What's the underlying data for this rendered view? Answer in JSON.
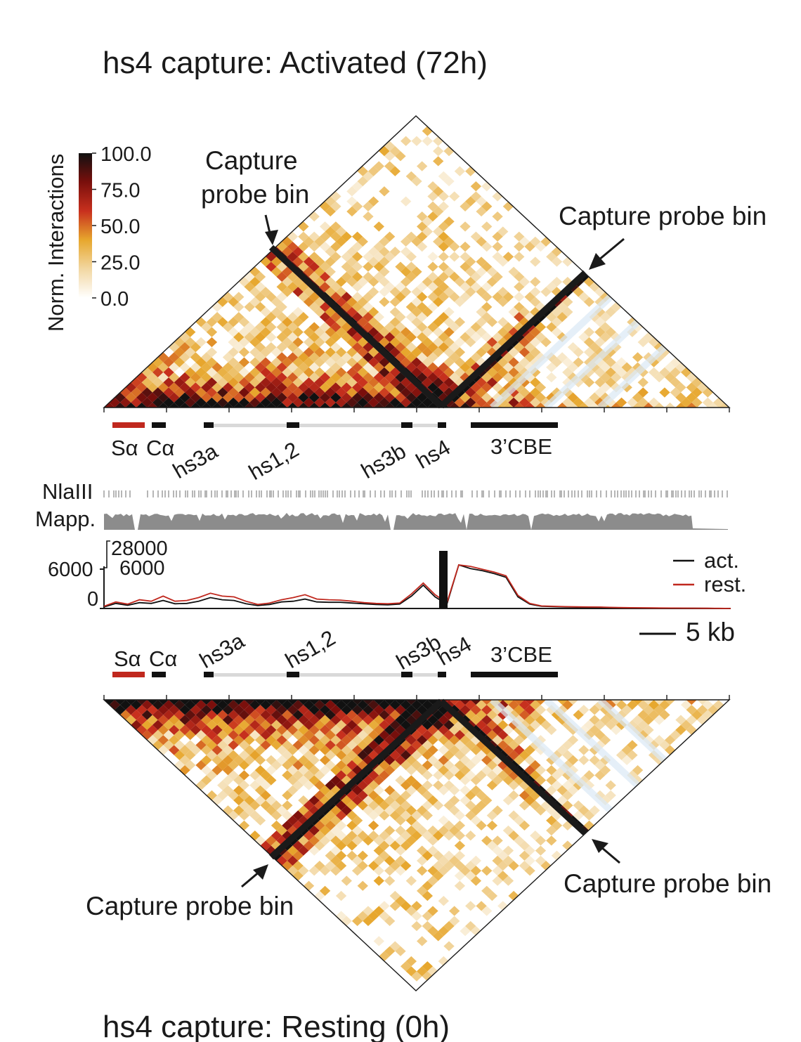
{
  "titles": {
    "top": "hs4 capture: Activated (72h)",
    "bottom": "hs4 capture: Resting (0h)"
  },
  "colorbar": {
    "label": "Norm. Interactions",
    "ticks": [
      "100.0",
      "75.0",
      "50.0",
      "25.0",
      "0.0"
    ],
    "colors": [
      "#ffffff",
      "#f2d7a2",
      "#e7a72d",
      "#c8301e",
      "#7a0f0c",
      "#111111"
    ]
  },
  "annotations": {
    "top_left_line1": "Capture",
    "top_left_line2": "probe bin",
    "top_right": "Capture probe bin",
    "bottom_left": "Capture probe bin",
    "bottom_right": "Capture probe bin"
  },
  "elements": {
    "s_alpha": "Sα",
    "c_alpha": "Cα",
    "hs3a": "hs3a",
    "hs12": "hs1,2",
    "hs3b": "hs3b",
    "hs4": "hs4",
    "cbe": "3’CBE"
  },
  "tracks": {
    "nlaiii": "NlaIII",
    "mapp": "Mapp.",
    "axis_outer_max": "6000",
    "axis_outer_min": "0",
    "axis_inner_max": "28000",
    "axis_inner_mid": "6000"
  },
  "legend": {
    "act": "act.",
    "rest": "rest.",
    "scale_bar": "5 kb"
  },
  "accent_colors": {
    "act": "#111111",
    "rest": "#c0281e",
    "s_alpha": "#c0281e",
    "track_gray": "#8c8c8c"
  },
  "chart_data": {
    "type": "heatmap",
    "colorbar_range": [
      0,
      100
    ],
    "profile": {
      "type": "line",
      "ylim": [
        0,
        6000
      ],
      "series": [
        {
          "name": "act.",
          "values": [
            200,
            700,
            450,
            800,
            700,
            1100,
            650,
            700,
            1000,
            1500,
            1200,
            1100,
            650,
            400,
            550,
            900,
            1000,
            1300,
            900,
            850,
            850,
            750,
            650,
            550,
            500,
            600,
            1700,
            3200,
            1600,
            600,
            6000,
            5500,
            5200,
            4800,
            4300,
            1600,
            600,
            300,
            250,
            200,
            180,
            180,
            160,
            120,
            100,
            80,
            70,
            60,
            50,
            40,
            30,
            20,
            10,
            0
          ]
        },
        {
          "name": "rest.",
          "values": [
            300,
            900,
            600,
            1200,
            1000,
            1700,
            1000,
            1100,
            1500,
            2100,
            1700,
            1600,
            1000,
            550,
            750,
            1200,
            1500,
            1900,
            1300,
            1200,
            1150,
            1000,
            800,
            700,
            650,
            750,
            2000,
            3500,
            1900,
            800,
            6000,
            5800,
            5400,
            5000,
            4500,
            1800,
            700,
            350,
            300,
            250,
            220,
            200,
            190,
            150,
            120,
            100,
            80,
            70,
            60,
            50,
            40,
            30,
            15,
            0
          ]
        }
      ]
    }
  }
}
